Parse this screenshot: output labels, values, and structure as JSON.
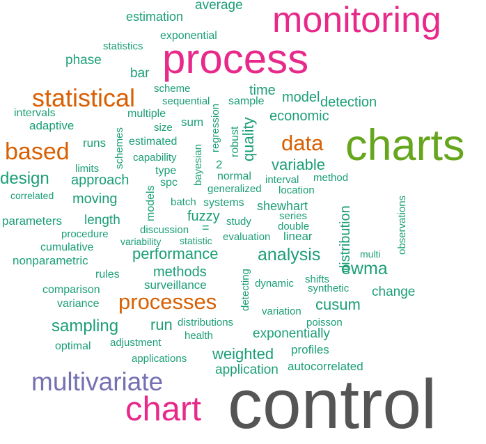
{
  "palette": {
    "green": "#1b9e77",
    "orange": "#d95f02",
    "purple": "#7570b3",
    "magenta": "#e7298a",
    "olive": "#66a61e",
    "gray": "#555555"
  },
  "words": [
    {
      "text": "control",
      "color": "#555555"
    },
    {
      "text": "charts",
      "color": "#66a61e"
    },
    {
      "text": "process",
      "color": "#e7298a"
    },
    {
      "text": "monitoring",
      "color": "#e7298a"
    },
    {
      "text": "chart",
      "color": "#e7298a"
    },
    {
      "text": "multivariate",
      "color": "#7570b3"
    },
    {
      "text": "statistical",
      "color": "#d95f02"
    },
    {
      "text": "based",
      "color": "#d95f02"
    },
    {
      "text": "data",
      "color": "#d95f02"
    },
    {
      "text": "processes",
      "color": "#d95f02"
    },
    {
      "text": "quality",
      "color": "#1b9e77"
    },
    {
      "text": "distribution",
      "color": "#1b9e77"
    },
    {
      "text": "ewma",
      "color": "#1b9e77"
    },
    {
      "text": "analysis",
      "color": "#1b9e77"
    },
    {
      "text": "performance",
      "color": "#1b9e77"
    },
    {
      "text": "variable",
      "color": "#1b9e77"
    },
    {
      "text": "design",
      "color": "#1b9e77"
    },
    {
      "text": "sampling",
      "color": "#1b9e77"
    },
    {
      "text": "cusum",
      "color": "#1b9e77"
    },
    {
      "text": "weighted",
      "color": "#1b9e77"
    },
    {
      "text": "run",
      "color": "#1b9e77"
    },
    {
      "text": "methods",
      "color": "#1b9e77"
    },
    {
      "text": "economic",
      "color": "#1b9e77"
    },
    {
      "text": "model",
      "color": "#1b9e77"
    },
    {
      "text": "time",
      "color": "#1b9e77"
    },
    {
      "text": "detection",
      "color": "#1b9e77"
    },
    {
      "text": "approach",
      "color": "#1b9e77"
    },
    {
      "text": "moving",
      "color": "#1b9e77"
    },
    {
      "text": "fuzzy",
      "color": "#1b9e77"
    },
    {
      "text": "shewhart",
      "color": "#1b9e77"
    },
    {
      "text": "exponentially",
      "color": "#1b9e77"
    },
    {
      "text": "application",
      "color": "#1b9e77"
    },
    {
      "text": "change",
      "color": "#1b9e77"
    },
    {
      "text": "average",
      "color": "#1b9e77"
    },
    {
      "text": "estimation",
      "color": "#1b9e77"
    },
    {
      "text": "exponential",
      "color": "#1b9e77"
    },
    {
      "text": "statistics",
      "color": "#1b9e77"
    },
    {
      "text": "phase",
      "color": "#1b9e77"
    },
    {
      "text": "bar",
      "color": "#1b9e77"
    },
    {
      "text": "scheme",
      "color": "#1b9e77"
    },
    {
      "text": "sequential",
      "color": "#1b9e77"
    },
    {
      "text": "sample",
      "color": "#1b9e77"
    },
    {
      "text": "intervals",
      "color": "#1b9e77"
    },
    {
      "text": "multiple",
      "color": "#1b9e77"
    },
    {
      "text": "adaptive",
      "color": "#1b9e77"
    },
    {
      "text": "size",
      "color": "#1b9e77"
    },
    {
      "text": "sum",
      "color": "#1b9e77"
    },
    {
      "text": "runs",
      "color": "#1b9e77"
    },
    {
      "text": "estimated",
      "color": "#1b9e77"
    },
    {
      "text": "capability",
      "color": "#1b9e77"
    },
    {
      "text": "limits",
      "color": "#1b9e77"
    },
    {
      "text": "type",
      "color": "#1b9e77"
    },
    {
      "text": "spc",
      "color": "#1b9e77"
    },
    {
      "text": "2",
      "color": "#1b9e77"
    },
    {
      "text": "normal",
      "color": "#1b9e77"
    },
    {
      "text": "interval",
      "color": "#1b9e77"
    },
    {
      "text": "method",
      "color": "#1b9e77"
    },
    {
      "text": "generalized",
      "color": "#1b9e77"
    },
    {
      "text": "location",
      "color": "#1b9e77"
    },
    {
      "text": "correlated",
      "color": "#1b9e77"
    },
    {
      "text": "batch",
      "color": "#1b9e77"
    },
    {
      "text": "systems",
      "color": "#1b9e77"
    },
    {
      "text": "parameters",
      "color": "#1b9e77"
    },
    {
      "text": "length",
      "color": "#1b9e77"
    },
    {
      "text": "series",
      "color": "#1b9e77"
    },
    {
      "text": "study",
      "color": "#1b9e77"
    },
    {
      "text": "double",
      "color": "#1b9e77"
    },
    {
      "text": "procedure",
      "color": "#1b9e77"
    },
    {
      "text": "discussion",
      "color": "#1b9e77"
    },
    {
      "text": "evaluation",
      "color": "#1b9e77"
    },
    {
      "text": "linear",
      "color": "#1b9e77"
    },
    {
      "text": "cumulative",
      "color": "#1b9e77"
    },
    {
      "text": "variability",
      "color": "#1b9e77"
    },
    {
      "text": "statistic",
      "color": "#1b9e77"
    },
    {
      "text": "nonparametric",
      "color": "#1b9e77"
    },
    {
      "text": "multi",
      "color": "#1b9e77"
    },
    {
      "text": "rules",
      "color": "#1b9e77"
    },
    {
      "text": "shifts",
      "color": "#1b9e77"
    },
    {
      "text": "surveillance",
      "color": "#1b9e77"
    },
    {
      "text": "dynamic",
      "color": "#1b9e77"
    },
    {
      "text": "synthetic",
      "color": "#1b9e77"
    },
    {
      "text": "comparison",
      "color": "#1b9e77"
    },
    {
      "text": "variance",
      "color": "#1b9e77"
    },
    {
      "text": "variation",
      "color": "#1b9e77"
    },
    {
      "text": "distributions",
      "color": "#1b9e77"
    },
    {
      "text": "poisson",
      "color": "#1b9e77"
    },
    {
      "text": "optimal",
      "color": "#1b9e77"
    },
    {
      "text": "adjustment",
      "color": "#1b9e77"
    },
    {
      "text": "health",
      "color": "#1b9e77"
    },
    {
      "text": "profiles",
      "color": "#1b9e77"
    },
    {
      "text": "applications",
      "color": "#1b9e77"
    },
    {
      "text": "autocorrelated",
      "color": "#1b9e77"
    },
    {
      "text": "schemes",
      "color": "#1b9e77"
    },
    {
      "text": "bayesian",
      "color": "#1b9e77"
    },
    {
      "text": "regression",
      "color": "#1b9e77"
    },
    {
      "text": "robust",
      "color": "#1b9e77"
    },
    {
      "text": "models",
      "color": "#1b9e77"
    },
    {
      "text": "detecting",
      "color": "#1b9e77"
    },
    {
      "text": "observations",
      "color": "#1b9e77"
    },
    {
      "text": "=",
      "color": "#1b9e77"
    }
  ]
}
